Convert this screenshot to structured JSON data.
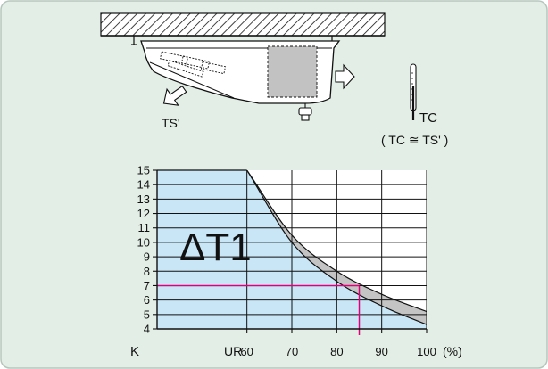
{
  "colors": {
    "panel_bg": "#e3eee6",
    "panel_border": "#b7c6bd",
    "chart_fill": "#c8e6f6",
    "band_fill": "#c4c4c4",
    "marker_line": "#e0007a",
    "ink": "#111111"
  },
  "labels": {
    "ts_prime": "TS'",
    "tc": "TC",
    "tc_relation": "( TC ≅ TS' )",
    "delta_t1": "ΔT1",
    "y_unit": "K",
    "x_var": "UR",
    "x_unit": "(%)"
  },
  "chart_data": {
    "type": "line",
    "x_ticks": [
      60,
      70,
      80,
      90,
      100
    ],
    "y_ticks": [
      4,
      5,
      6,
      7,
      8,
      9,
      10,
      11,
      12,
      13,
      14,
      15
    ],
    "xlim": [
      40,
      100
    ],
    "ylim": [
      4,
      15
    ],
    "x": [
      60,
      70,
      80,
      90,
      100
    ],
    "series": [
      {
        "values": [
          15,
          10.5,
          8.0,
          6.4,
          5.2
        ]
      },
      {
        "values": [
          15,
          10.0,
          7.3,
          5.6,
          4.3
        ]
      }
    ],
    "marker": {
      "x": 85,
      "y": 7
    }
  }
}
